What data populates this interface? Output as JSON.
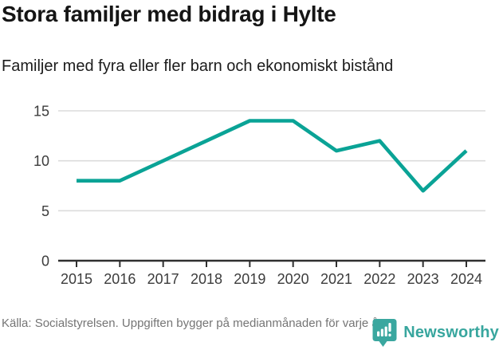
{
  "header": {
    "title": "Stora familjer med bidrag i Hylte",
    "subtitle": "Familjer med fyra eller fler barn och ekonomiskt bistånd"
  },
  "chart_data": {
    "type": "line",
    "x": [
      2015,
      2016,
      2017,
      2018,
      2019,
      2020,
      2021,
      2022,
      2023,
      2024
    ],
    "series": [
      {
        "name": "Familjer med fyra eller fler barn och ekonomiskt bistånd",
        "values": [
          8,
          8,
          10,
          12,
          14,
          14,
          11,
          12,
          7,
          11
        ]
      }
    ],
    "title": "Stora familjer med bidrag i Hylte",
    "xlabel": "",
    "ylabel": "",
    "ylim": [
      0,
      15
    ],
    "yticks": [
      0,
      5,
      10,
      15
    ],
    "grid": true,
    "legend_position": "none",
    "line_color": "#0aa396"
  },
  "footer": {
    "source": "Källa: Socialstyrelsen. Uppgiften bygger på medianmånaden för varje år",
    "brand_name": "Newsworthy"
  },
  "icons": {
    "brand_logo": "newsworthy-speech-bubble-bar-chart"
  },
  "colors": {
    "line": "#0aa396",
    "axis": "#2f2f2f",
    "gridline": "#dcdcdc",
    "tick_label": "#3c3c3c",
    "title_text": "#151515",
    "footer_text": "#757575",
    "brand_teal": "#3aa79f"
  }
}
